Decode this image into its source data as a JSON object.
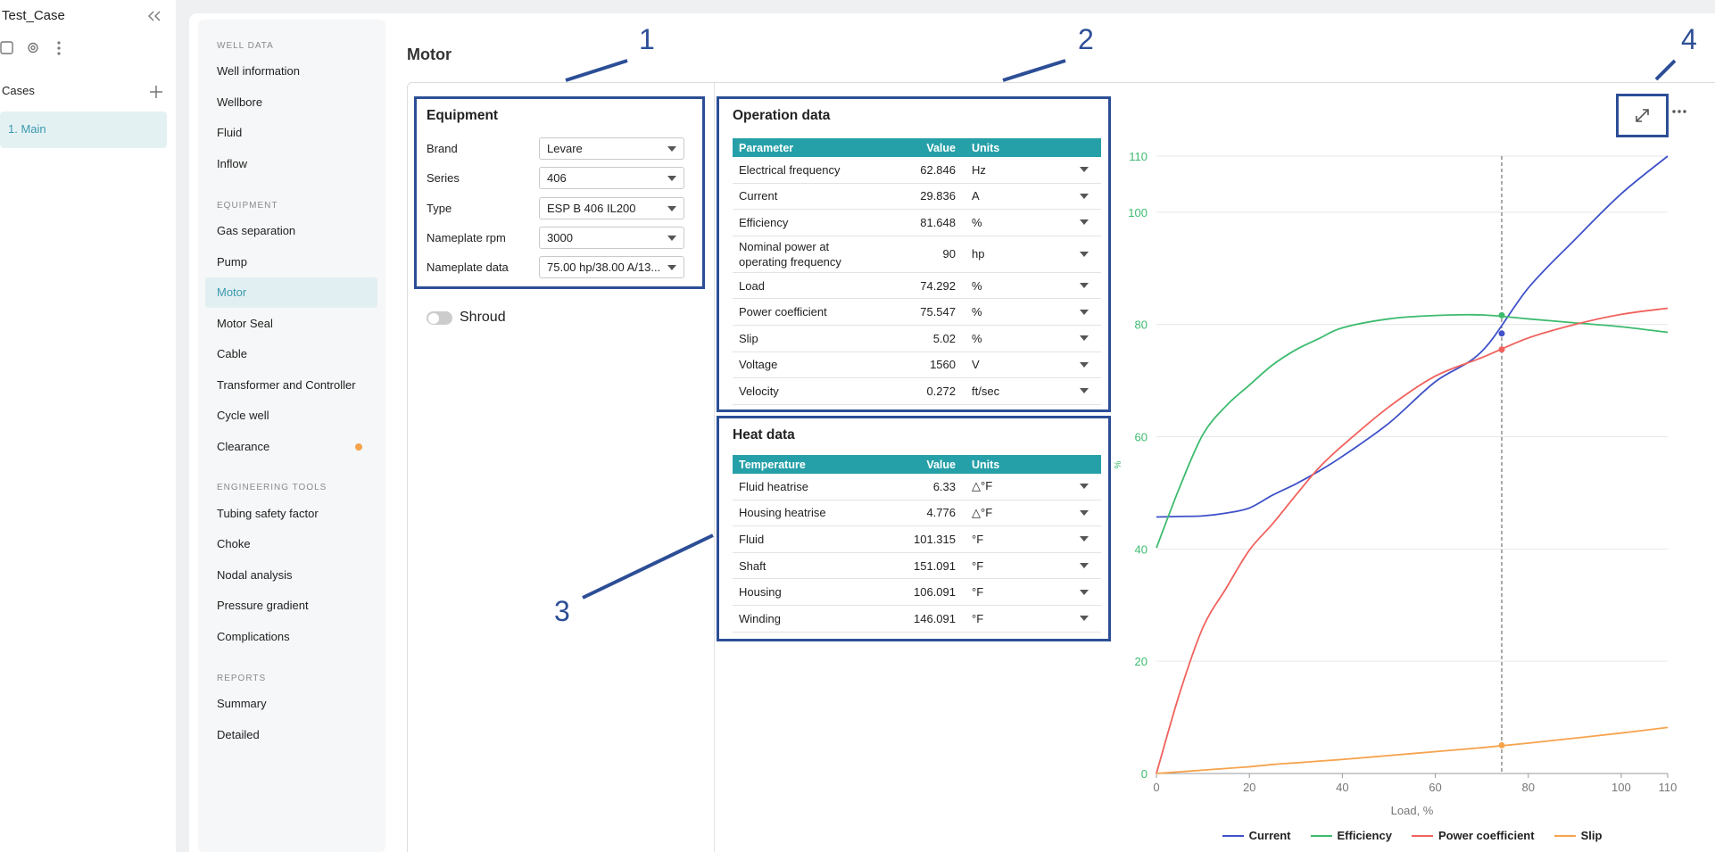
{
  "sidebar": {
    "project": "Test_Case",
    "cases_label": "Cases",
    "cases": [
      "1. Main"
    ]
  },
  "nav": [
    {
      "heading": "WELL DATA",
      "items": [
        {
          "label": "Well information"
        },
        {
          "label": "Wellbore"
        },
        {
          "label": "Fluid"
        },
        {
          "label": "Inflow"
        }
      ]
    },
    {
      "heading": "EQUIPMENT",
      "items": [
        {
          "label": "Gas separation"
        },
        {
          "label": "Pump"
        },
        {
          "label": "Motor",
          "active": true
        },
        {
          "label": "Motor Seal"
        },
        {
          "label": "Cable"
        },
        {
          "label": "Transformer and Controller"
        },
        {
          "label": "Cycle well"
        },
        {
          "label": "Clearance",
          "flag": true
        }
      ]
    },
    {
      "heading": "ENGINEERING TOOLS",
      "items": [
        {
          "label": "Tubing safety factor"
        },
        {
          "label": "Choke"
        },
        {
          "label": "Nodal analysis"
        },
        {
          "label": "Pressure gradient"
        },
        {
          "label": "Complications"
        }
      ]
    },
    {
      "heading": "REPORTS",
      "items": [
        {
          "label": "Summary"
        },
        {
          "label": "Detailed"
        }
      ]
    }
  ],
  "page_title": "Motor",
  "annotations": [
    "1",
    "2",
    "3",
    "4"
  ],
  "equipment": {
    "title": "Equipment",
    "fields": [
      {
        "label": "Brand",
        "value": "Levare"
      },
      {
        "label": "Series",
        "value": "406"
      },
      {
        "label": "Type",
        "value": "ESP B 406 IL200"
      },
      {
        "label": "Nameplate rpm",
        "value": "3000"
      },
      {
        "label": "Nameplate data",
        "value": "75.00 hp/38.00 A/13..."
      }
    ],
    "shroud": {
      "label": "Shroud",
      "on": false
    }
  },
  "operation": {
    "title": "Operation data",
    "columns": [
      "Parameter",
      "Value",
      "Units"
    ],
    "rows": [
      [
        "Electrical frequency",
        "62.846",
        "Hz"
      ],
      [
        "Current",
        "29.836",
        "A"
      ],
      [
        "Efficiency",
        "81.648",
        "%"
      ],
      [
        "Nominal power at operating frequency",
        "90",
        "hp"
      ],
      [
        "Load",
        "74.292",
        "%"
      ],
      [
        "Power coefficient",
        "75.547",
        "%"
      ],
      [
        "Slip",
        "5.02",
        "%"
      ],
      [
        "Voltage",
        "1560",
        "V"
      ],
      [
        "Velocity",
        "0.272",
        "ft/sec"
      ]
    ]
  },
  "heat": {
    "title": "Heat data",
    "columns": [
      "Temperature",
      "Value",
      "Units"
    ],
    "rows": [
      [
        "Fluid heatrise",
        "6.33",
        "△°F"
      ],
      [
        "Housing heatrise",
        "4.776",
        "△°F"
      ],
      [
        "Fluid",
        "101.315",
        "°F"
      ],
      [
        "Shaft",
        "151.091",
        "°F"
      ],
      [
        "Housing",
        "106.091",
        "°F"
      ],
      [
        "Winding",
        "146.091",
        "°F"
      ]
    ]
  },
  "chart_data": {
    "type": "line",
    "xlabel": "Load, %",
    "ylabel": "%",
    "x": [
      0,
      5,
      10,
      15,
      20,
      25,
      30,
      35,
      40,
      50,
      60,
      70,
      80,
      90,
      100,
      110
    ],
    "series": [
      {
        "name": "Current",
        "color": "#3f51c9",
        "cursor_value": 78.4,
        "values": [
          45.7,
          45.8,
          45.9,
          46.4,
          47.3,
          49.6,
          51.6,
          53.9,
          56.5,
          62.4,
          69.8,
          75.2,
          86.5,
          95.1,
          103.3,
          110
        ]
      },
      {
        "name": "Efficiency",
        "color": "#3dbb6e",
        "cursor_value": 81.648,
        "values": [
          40.2,
          51,
          60.4,
          65.5,
          69.2,
          72.8,
          75.5,
          77.5,
          79.4,
          81,
          81.6,
          81.7,
          81,
          80.3,
          79.6,
          78.6
        ]
      },
      {
        "name": "Power coefficient",
        "color": "#f0625d",
        "cursor_value": 75.547,
        "values": [
          0,
          14.3,
          26,
          33,
          39.8,
          44.5,
          49.6,
          54.5,
          58.4,
          65.3,
          70.8,
          74.1,
          77.6,
          80,
          81.8,
          82.9
        ]
      },
      {
        "name": "Slip",
        "color": "#f6a34d",
        "cursor_value": 5.02,
        "values": [
          0,
          0.3,
          0.6,
          0.9,
          1.2,
          1.6,
          1.9,
          2.2,
          2.5,
          3.2,
          3.9,
          4.6,
          5.4,
          6.3,
          7.2,
          8.2
        ]
      }
    ],
    "cursor_x": 74.292,
    "xlim": [
      0,
      110
    ],
    "ylim": [
      0,
      110
    ],
    "xticks": [
      0,
      20,
      40,
      60,
      80,
      100,
      110
    ],
    "yticks": [
      0,
      20,
      40,
      60,
      80,
      100,
      110
    ],
    "ytick_color": "#3dbb6e",
    "grid": true,
    "legend": "bottom"
  }
}
